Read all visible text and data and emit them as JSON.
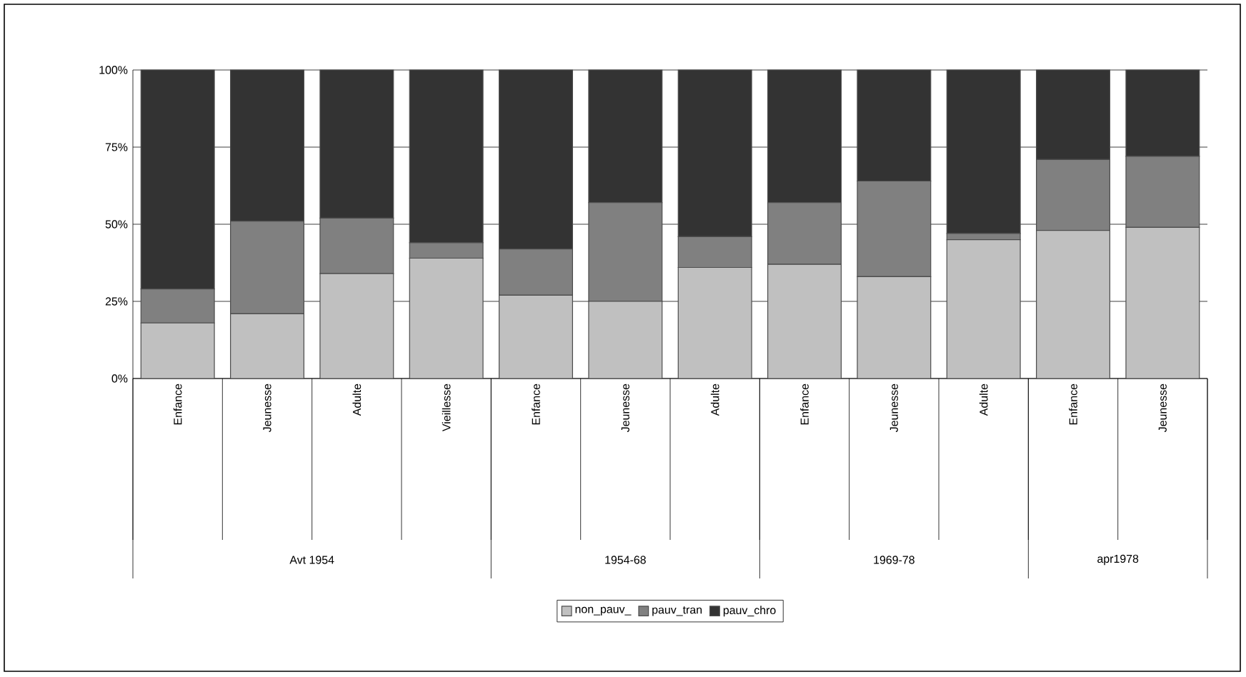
{
  "chart_data": {
    "type": "bar",
    "stacked": true,
    "categories": [
      "Enfance",
      "Jeunesse",
      "Adulte",
      "Vieillesse",
      "Enfance",
      "Jeunesse",
      "Adulte",
      "Enfance",
      "Jeunesse",
      "Adulte",
      "Enfance",
      "Jeunesse"
    ],
    "series": [
      {
        "name": "non_pauv_",
        "color": "#c0c0c0",
        "values": [
          18,
          21,
          34,
          39,
          27,
          25,
          36,
          37,
          33,
          45,
          48,
          49
        ]
      },
      {
        "name": "pauv_tran",
        "color": "#808080",
        "values": [
          11,
          30,
          18,
          5,
          15,
          32,
          10,
          20,
          31,
          2,
          23,
          23
        ]
      },
      {
        "name": "pauv_chro",
        "color": "#333333",
        "values": [
          71,
          49,
          48,
          56,
          58,
          43,
          54,
          43,
          36,
          53,
          29,
          28
        ]
      }
    ],
    "ylim": [
      0,
      100
    ],
    "yticks": [
      {
        "value": 0,
        "label": "0%"
      },
      {
        "value": 25,
        "label": "25%"
      },
      {
        "value": 50,
        "label": "50%"
      },
      {
        "value": 75,
        "label": "75%"
      },
      {
        "value": 100,
        "label": "100%"
      }
    ],
    "grid": "y",
    "legend": "bottom",
    "annotations": [
      "Avt 1954",
      "1954-68",
      "1969-78",
      "apr1978"
    ]
  }
}
